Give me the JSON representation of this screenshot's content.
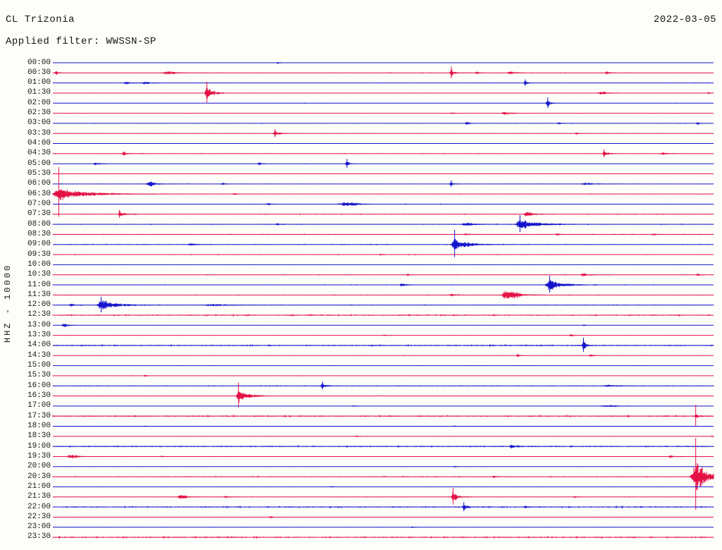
{
  "header": {
    "station": "CL Trizonia",
    "date": "2022-03-05",
    "filter": "Applied filter: WWSSN-SP"
  },
  "chart_data": {
    "type": "seismogram-helicorder",
    "title": "CL Trizonia",
    "date": "2022-03-05",
    "applied_filter": "WWSSN-SP",
    "ylabel": "HHZ - 10000",
    "channel": "HHZ",
    "scale": "10000",
    "line_duration_minutes": 30,
    "x_axis": "event x = fraction of 30-minute line",
    "amplitude_units": "trace pixels (relative)",
    "legend_position": "none",
    "grid": false,
    "palette": {
      "blue": "#1414cc",
      "red": "#e41145"
    },
    "rows": [
      {
        "t": "00:00",
        "c": "blue",
        "n": 0.3,
        "ev": [
          {
            "x": 0.34,
            "a": 1.6,
            "w": 3
          }
        ]
      },
      {
        "t": "00:30",
        "c": "red",
        "n": 0.5,
        "ev": [
          {
            "x": 0.005,
            "a": 2.5,
            "w": 2
          },
          {
            "x": 0.173,
            "a": 2.2,
            "w": 12,
            "t": 20
          },
          {
            "x": 0.603,
            "a": 6,
            "w": 2,
            "t": 5,
            "v": 9
          },
          {
            "x": 0.642,
            "a": 2,
            "w": 2
          },
          {
            "x": 0.691,
            "a": 2.2,
            "w": 5
          },
          {
            "x": 0.838,
            "a": 2.5,
            "w": 3
          }
        ]
      },
      {
        "t": "01:00",
        "c": "blue",
        "n": 0.4,
        "ev": [
          {
            "x": 0.11,
            "a": 2,
            "w": 5
          },
          {
            "x": 0.139,
            "a": 2.2,
            "w": 5
          },
          {
            "x": 0.715,
            "a": 3.5,
            "w": 2,
            "t": 5,
            "v": 5
          }
        ]
      },
      {
        "t": "01:30",
        "c": "red",
        "n": 0.4,
        "ev": [
          {
            "x": 0.233,
            "a": 13,
            "w": 3,
            "t": 9,
            "v": 16
          },
          {
            "x": 0.829,
            "a": 2.5,
            "w": 7
          },
          {
            "x": 0.992,
            "a": 2,
            "w": 2
          }
        ]
      },
      {
        "t": "02:00",
        "c": "blue",
        "n": 0.35,
        "ev": [
          {
            "x": 0.749,
            "a": 6.5,
            "w": 2,
            "t": 5,
            "v": 8
          }
        ]
      },
      {
        "t": "02:30",
        "c": "red",
        "n": 0.35,
        "ev": [
          {
            "x": 0.603,
            "a": 1.5,
            "w": 3
          },
          {
            "x": 0.683,
            "a": 2.5,
            "w": 6
          }
        ]
      },
      {
        "t": "03:00",
        "c": "blue",
        "n": 0.4,
        "ev": [
          {
            "x": 0.626,
            "a": 2.5,
            "w": 3
          },
          {
            "x": 0.766,
            "a": 2.5,
            "w": 2
          },
          {
            "x": 0.976,
            "a": 2,
            "w": 2
          }
        ]
      },
      {
        "t": "03:30",
        "c": "red",
        "n": 0.4,
        "ev": [
          {
            "x": 0.336,
            "a": 4.5,
            "w": 2,
            "t": 8,
            "v": 6
          },
          {
            "x": 0.792,
            "a": 2,
            "w": 2
          }
        ]
      },
      {
        "t": "04:00",
        "c": "blue",
        "n": 0.3,
        "ev": []
      },
      {
        "t": "04:30",
        "c": "red",
        "n": 0.5,
        "ev": [
          {
            "x": 0.107,
            "a": 3,
            "w": 3
          },
          {
            "x": 0.834,
            "a": 4.5,
            "w": 3,
            "t": 7,
            "v": 6
          },
          {
            "x": 0.923,
            "a": 1.8,
            "w": 6
          }
        ]
      },
      {
        "t": "05:00",
        "c": "blue",
        "n": 0.35,
        "ev": [
          {
            "x": 0.064,
            "a": 1.8,
            "w": 5
          },
          {
            "x": 0.312,
            "a": 3,
            "w": 2
          },
          {
            "x": 0.445,
            "a": 5.5,
            "w": 2,
            "t": 5,
            "v": 7
          }
        ]
      },
      {
        "t": "05:30",
        "c": "red",
        "n": 0.3,
        "ev": []
      },
      {
        "t": "06:00",
        "c": "blue",
        "n": 0.45,
        "ev": [
          {
            "x": 0.146,
            "a": 5,
            "w": 6,
            "t": 9
          },
          {
            "x": 0.256,
            "a": 1.8,
            "w": 3
          },
          {
            "x": 0.603,
            "a": 4,
            "w": 2,
            "v": 5
          },
          {
            "x": 0.806,
            "a": 2,
            "w": 9
          }
        ]
      },
      {
        "t": "06:30",
        "c": "red",
        "n": 0.45,
        "ev": [
          {
            "x": 0.009,
            "a": 11,
            "w": 12,
            "t": 40,
            "v": 38
          },
          {
            "x": 0.275,
            "a": 2,
            "w": 2
          }
        ]
      },
      {
        "t": "07:00",
        "c": "blue",
        "n": 0.45,
        "ev": [
          {
            "x": 0.325,
            "a": 2,
            "w": 4
          },
          {
            "x": 0.443,
            "a": 3,
            "w": 16,
            "t": 18
          }
        ]
      },
      {
        "t": "07:30",
        "c": "red",
        "n": 0.55,
        "ev": [
          {
            "x": 0.101,
            "a": 4.5,
            "w": 3,
            "t": 9,
            "v": 6
          },
          {
            "x": 0.717,
            "a": 4.5,
            "w": 6,
            "t": 9
          }
        ]
      },
      {
        "t": "08:00",
        "c": "blue",
        "n": 0.6,
        "ev": [
          {
            "x": 0.339,
            "a": 1.8,
            "w": 3
          },
          {
            "x": 0.624,
            "a": 2.5,
            "w": 9
          },
          {
            "x": 0.707,
            "a": 9,
            "w": 8,
            "t": 26,
            "v": 13
          }
        ]
      },
      {
        "t": "08:30",
        "c": "red",
        "n": 0.55,
        "ev": [
          {
            "x": 0.624,
            "a": 1.8,
            "w": 3
          },
          {
            "x": 0.763,
            "a": 1.8,
            "w": 3
          },
          {
            "x": 0.909,
            "a": 1.8,
            "w": 3
          }
        ]
      },
      {
        "t": "09:00",
        "c": "blue",
        "n": 0.55,
        "ev": [
          {
            "x": 0.208,
            "a": 1.8,
            "w": 5
          },
          {
            "x": 0.608,
            "a": 10,
            "w": 7,
            "t": 20,
            "v": 21
          }
        ]
      },
      {
        "t": "09:30",
        "c": "red",
        "n": 0.5,
        "ev": [
          {
            "x": 0.496,
            "a": 1.5,
            "w": 3
          }
        ]
      },
      {
        "t": "10:00",
        "c": "blue",
        "n": 0.3,
        "ev": []
      },
      {
        "t": "10:30",
        "c": "red",
        "n": 0.45,
        "ev": [
          {
            "x": 0.537,
            "a": 2,
            "w": 2
          },
          {
            "x": 0.802,
            "a": 2.5,
            "w": 5
          },
          {
            "x": 0.976,
            "a": 2,
            "w": 2
          }
        ]
      },
      {
        "t": "11:00",
        "c": "blue",
        "n": 0.55,
        "ev": [
          {
            "x": 0.528,
            "a": 3,
            "w": 4
          },
          {
            "x": 0.752,
            "a": 9,
            "w": 9,
            "t": 20,
            "v": 13
          }
        ]
      },
      {
        "t": "11:30",
        "c": "red",
        "n": 0.5,
        "ev": [
          {
            "x": 0.603,
            "a": 2,
            "w": 4
          },
          {
            "x": 0.688,
            "a": 7.5,
            "w": 13,
            "t": 16
          }
        ]
      },
      {
        "t": "12:00",
        "c": "blue",
        "n": 0.55,
        "ev": [
          {
            "x": 0.027,
            "a": 2,
            "w": 5
          },
          {
            "x": 0.073,
            "a": 9,
            "w": 8,
            "t": 24,
            "v": 12
          },
          {
            "x": 0.24,
            "a": 1.5,
            "w": 18
          }
        ]
      },
      {
        "t": "12:30",
        "c": "red",
        "n": 1.0,
        "ev": []
      },
      {
        "t": "13:00",
        "c": "blue",
        "n": 0.3,
        "ev": [
          {
            "x": 0.016,
            "a": 3.5,
            "w": 4,
            "t": 7
          },
          {
            "x": 0.804,
            "a": 1.5,
            "w": 2
          }
        ]
      },
      {
        "t": "13:30",
        "c": "red",
        "n": 0.3,
        "ev": [
          {
            "x": 0.502,
            "a": 1.5,
            "w": 2
          },
          {
            "x": 0.784,
            "a": 1.5,
            "w": 4
          }
        ]
      },
      {
        "t": "14:00",
        "c": "blue",
        "n": 1.0,
        "ev": [
          {
            "x": 0.803,
            "a": 8,
            "w": 2,
            "t": 4,
            "v": 11
          }
        ]
      },
      {
        "t": "14:30",
        "c": "red",
        "n": 0.35,
        "ev": [
          {
            "x": 0.704,
            "a": 2.5,
            "w": 2
          },
          {
            "x": 0.814,
            "a": 1.5,
            "w": 4
          }
        ]
      },
      {
        "t": "15:00",
        "c": "blue",
        "n": 0.3,
        "ev": []
      },
      {
        "t": "15:30",
        "c": "red",
        "n": 0.4,
        "ev": [
          {
            "x": 0.139,
            "a": 1.5,
            "w": 2
          }
        ]
      },
      {
        "t": "16:00",
        "c": "blue",
        "n": 0.65,
        "ev": [
          {
            "x": 0.408,
            "a": 4.5,
            "w": 2,
            "t": 5,
            "v": 6
          },
          {
            "x": 0.838,
            "a": 1.8,
            "w": 7
          }
        ]
      },
      {
        "t": "16:30",
        "c": "red",
        "n": 0.4,
        "ev": [
          {
            "x": 0.281,
            "a": 11,
            "w": 4,
            "t": 15,
            "v": 19
          }
        ]
      },
      {
        "t": "17:00",
        "c": "blue",
        "n": 0.35,
        "ev": [
          {
            "x": 0.454,
            "a": 1.2,
            "w": 3
          },
          {
            "x": 0.838,
            "a": 1.4,
            "w": 18,
            "t": 30
          }
        ]
      },
      {
        "t": "17:30",
        "c": "red",
        "n": 1.0,
        "ev": [
          {
            "x": 0.973,
            "a": 3,
            "w": 2,
            "v": 16
          }
        ]
      },
      {
        "t": "18:00",
        "c": "blue",
        "n": 0.3,
        "ev": [
          {
            "x": 0.139,
            "a": 1.2,
            "w": 2
          },
          {
            "x": 0.608,
            "a": 1.4,
            "w": 2
          }
        ]
      },
      {
        "t": "18:30",
        "c": "red",
        "n": 0.3,
        "ev": [
          {
            "x": 0.459,
            "a": 1.5,
            "w": 2
          },
          {
            "x": 0.998,
            "a": 1.5,
            "w": 2
          }
        ]
      },
      {
        "t": "19:00",
        "c": "blue",
        "n": 1.0,
        "ev": [
          {
            "x": 0.694,
            "a": 3,
            "w": 3
          }
        ]
      },
      {
        "t": "19:30",
        "c": "red",
        "n": 0.35,
        "ev": [
          {
            "x": 0.027,
            "a": 2.8,
            "w": 9,
            "t": 13
          },
          {
            "x": 0.165,
            "a": 1.5,
            "w": 2
          },
          {
            "x": 0.934,
            "a": 2,
            "w": 5
          }
        ]
      },
      {
        "t": "20:00",
        "c": "blue",
        "n": 0.3,
        "ev": [
          {
            "x": 0.608,
            "a": 1.2,
            "w": 2
          }
        ]
      },
      {
        "t": "20:30",
        "c": "red",
        "n": 0.7,
        "ev": [
          {
            "x": 0.667,
            "a": 1.5,
            "w": 3
          },
          {
            "x": 0.973,
            "a": 24,
            "w": 9,
            "t": 17,
            "v": 55
          }
        ]
      },
      {
        "t": "21:00",
        "c": "blue",
        "n": 0.3,
        "ev": [
          {
            "x": 0.421,
            "a": 1.5,
            "w": 2
          }
        ]
      },
      {
        "t": "21:30",
        "c": "red",
        "n": 0.45,
        "ev": [
          {
            "x": 0.194,
            "a": 3.5,
            "w": 7,
            "t": 10
          },
          {
            "x": 0.261,
            "a": 1.8,
            "w": 4
          },
          {
            "x": 0.606,
            "a": 8.5,
            "w": 4,
            "t": 8,
            "v": 13
          },
          {
            "x": 0.79,
            "a": 1.8,
            "w": 2
          }
        ]
      },
      {
        "t": "22:00",
        "c": "blue",
        "n": 1.0,
        "ev": [
          {
            "x": 0.622,
            "a": 5,
            "w": 2,
            "t": 4,
            "v": 7
          },
          {
            "x": 0.715,
            "a": 2,
            "w": 2
          }
        ]
      },
      {
        "t": "22:30",
        "c": "red",
        "n": 0.35,
        "ev": [
          {
            "x": 0.329,
            "a": 2.2,
            "w": 2
          }
        ]
      },
      {
        "t": "23:00",
        "c": "blue",
        "n": 0.3,
        "ev": [
          {
            "x": 0.544,
            "a": 1.2,
            "w": 2
          }
        ]
      },
      {
        "t": "23:30",
        "c": "red",
        "n": 1.1,
        "ev": []
      }
    ]
  }
}
